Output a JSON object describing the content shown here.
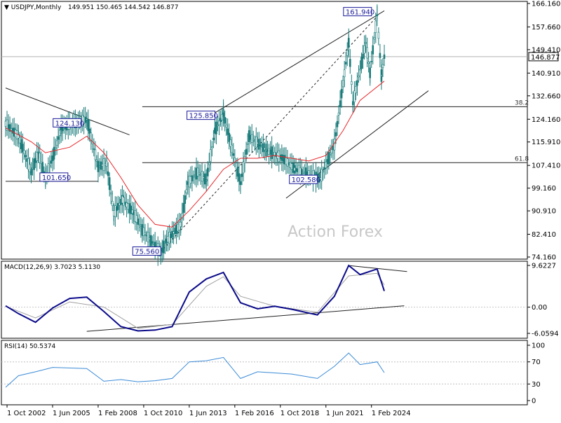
{
  "chart_data": [
    {
      "type": "candlestick",
      "title": "USDJPY,Monthly",
      "ohlc_label": "149.951 150.465 144.542 146.877",
      "ylim": [
        74.16,
        166.16
      ],
      "y_ticks": [
        "166.160",
        "157.660",
        "149.410",
        "140.910",
        "132.660",
        "124.160",
        "115.910",
        "107.410",
        "99.160",
        "90.910",
        "82.410",
        "74.160"
      ],
      "current_price": "146.877",
      "x_ticks": [
        "1 Oct 2002",
        "1 Jun 2005",
        "1 Feb 2008",
        "1 Oct 2010",
        "1 Jun 2013",
        "1 Feb 2016",
        "1 Oct 2018",
        "1 Jun 2021",
        "1 Feb 2024"
      ],
      "x_range": [
        "2002-09",
        "2024-11"
      ],
      "price_points": [
        {
          "date": "2002-09",
          "price": 122.5
        },
        {
          "date": "2003-06",
          "price": 118.0
        },
        {
          "date": "2004-03",
          "price": 105.0
        },
        {
          "date": "2004-08",
          "price": 112.0
        },
        {
          "date": "2005-01",
          "price": 103.0
        },
        {
          "date": "2005-06",
          "price": 110.0
        },
        {
          "date": "2005-12",
          "price": 121.0
        },
        {
          "date": "2007-06",
          "price": 124.1
        },
        {
          "date": "2008-02",
          "price": 107.0
        },
        {
          "date": "2008-08",
          "price": 108.0
        },
        {
          "date": "2009-01",
          "price": 90.0
        },
        {
          "date": "2009-07",
          "price": 95.0
        },
        {
          "date": "2010-03",
          "price": 90.0
        },
        {
          "date": "2010-09",
          "price": 84.0
        },
        {
          "date": "2011-10",
          "price": 75.6
        },
        {
          "date": "2012-02",
          "price": 80.0
        },
        {
          "date": "2012-12",
          "price": 86.0
        },
        {
          "date": "2013-05",
          "price": 101.0
        },
        {
          "date": "2013-12",
          "price": 105.0
        },
        {
          "date": "2014-06",
          "price": 102.0
        },
        {
          "date": "2014-12",
          "price": 120.0
        },
        {
          "date": "2015-06",
          "price": 125.85
        },
        {
          "date": "2016-06",
          "price": 101.0
        },
        {
          "date": "2016-12",
          "price": 118.0
        },
        {
          "date": "2017-12",
          "price": 113.0
        },
        {
          "date": "2018-12",
          "price": 110.0
        },
        {
          "date": "2019-08",
          "price": 106.0
        },
        {
          "date": "2020-12",
          "price": 103.0
        },
        {
          "date": "2021-02",
          "price": 102.6
        },
        {
          "date": "2021-12",
          "price": 115.0
        },
        {
          "date": "2022-10",
          "price": 151.9
        },
        {
          "date": "2023-01",
          "price": 130.0
        },
        {
          "date": "2023-10",
          "price": 151.9
        },
        {
          "date": "2024-01",
          "price": 141.0
        },
        {
          "date": "2024-06",
          "price": 161.9
        },
        {
          "date": "2024-09",
          "price": 140.0
        },
        {
          "date": "2024-11",
          "price": 146.877
        }
      ],
      "ma_points": [
        {
          "date": "2002-09",
          "price": 121
        },
        {
          "date": "2004-03",
          "price": 116
        },
        {
          "date": "2005-01",
          "price": 112
        },
        {
          "date": "2006-06",
          "price": 114
        },
        {
          "date": "2007-06",
          "price": 118
        },
        {
          "date": "2008-06",
          "price": 112
        },
        {
          "date": "2009-06",
          "price": 103
        },
        {
          "date": "2010-06",
          "price": 93
        },
        {
          "date": "2011-06",
          "price": 86
        },
        {
          "date": "2012-06",
          "price": 85
        },
        {
          "date": "2013-06",
          "price": 91
        },
        {
          "date": "2014-06",
          "price": 98
        },
        {
          "date": "2015-06",
          "price": 106
        },
        {
          "date": "2016-06",
          "price": 110
        },
        {
          "date": "2017-06",
          "price": 110
        },
        {
          "date": "2018-06",
          "price": 111
        },
        {
          "date": "2019-06",
          "price": 110
        },
        {
          "date": "2020-06",
          "price": 109
        },
        {
          "date": "2021-06",
          "price": 111
        },
        {
          "date": "2022-06",
          "price": 120
        },
        {
          "date": "2023-06",
          "price": 131
        },
        {
          "date": "2024-11",
          "price": 138
        }
      ],
      "annotations": [
        {
          "text": "161.940",
          "date": "2024-06",
          "price": 161.94
        },
        {
          "text": "124.130",
          "date": "2007-06",
          "price": 124.13
        },
        {
          "text": "125.850",
          "date": "2015-06",
          "price": 125.85
        },
        {
          "text": "101.650",
          "date": "2005-01",
          "price": 101.65
        },
        {
          "text": "102.580",
          "date": "2021-02",
          "price": 102.58
        },
        {
          "text": "75.560",
          "date": "2011-10",
          "price": 75.56
        }
      ],
      "fib_levels": [
        {
          "label": "38.2",
          "price": 128.7
        },
        {
          "label": "61.8",
          "price": 108.4
        }
      ],
      "watermark": "Action Forex"
    },
    {
      "type": "line",
      "title": "MACD(12,26,9) 3.7023 5.1130",
      "y_ticks": [
        "9.6227",
        "0.00",
        "-6.0594"
      ],
      "ylim": [
        -6.0594,
        9.6227
      ],
      "macd_points": [
        {
          "date": "2002-09",
          "v": 0.3
        },
        {
          "date": "2003-06",
          "v": -1.5
        },
        {
          "date": "2004-06",
          "v": -3.5
        },
        {
          "date": "2005-06",
          "v": -0.2
        },
        {
          "date": "2006-06",
          "v": 2.0
        },
        {
          "date": "2007-06",
          "v": 2.3
        },
        {
          "date": "2008-06",
          "v": -1.0
        },
        {
          "date": "2009-06",
          "v": -4.5
        },
        {
          "date": "2010-06",
          "v": -5.5
        },
        {
          "date": "2011-06",
          "v": -5.3
        },
        {
          "date": "2012-06",
          "v": -4.5
        },
        {
          "date": "2013-06",
          "v": 3.5
        },
        {
          "date": "2014-06",
          "v": 6.5
        },
        {
          "date": "2015-06",
          "v": 8.0
        },
        {
          "date": "2016-06",
          "v": 1.0
        },
        {
          "date": "2017-06",
          "v": -0.4
        },
        {
          "date": "2018-06",
          "v": 0.2
        },
        {
          "date": "2019-06",
          "v": -0.5
        },
        {
          "date": "2020-12",
          "v": -1.8
        },
        {
          "date": "2021-12",
          "v": 2.5
        },
        {
          "date": "2022-10",
          "v": 9.6
        },
        {
          "date": "2023-06",
          "v": 7.5
        },
        {
          "date": "2024-06",
          "v": 8.8
        },
        {
          "date": "2024-11",
          "v": 3.7
        }
      ],
      "signal_points": [
        {
          "date": "2002-09",
          "v": 0.2
        },
        {
          "date": "2004-06",
          "v": -2.5
        },
        {
          "date": "2006-06",
          "v": 1.2
        },
        {
          "date": "2008-06",
          "v": 0.0
        },
        {
          "date": "2010-06",
          "v": -4.9
        },
        {
          "date": "2012-06",
          "v": -4.0
        },
        {
          "date": "2014-06",
          "v": 4.8
        },
        {
          "date": "2015-06",
          "v": 7.0
        },
        {
          "date": "2016-06",
          "v": 2.5
        },
        {
          "date": "2018-06",
          "v": 0.2
        },
        {
          "date": "2020-12",
          "v": -1.2
        },
        {
          "date": "2022-10",
          "v": 7.2
        },
        {
          "date": "2024-06",
          "v": 7.8
        },
        {
          "date": "2024-11",
          "v": 5.1
        }
      ]
    },
    {
      "type": "line",
      "title": "RSI(14) 50.5374",
      "y_ticks": [
        "100",
        "70",
        "30",
        "0"
      ],
      "ylim": [
        0,
        100
      ],
      "rsi_points": [
        {
          "date": "2002-09",
          "v": 24
        },
        {
          "date": "2003-06",
          "v": 45
        },
        {
          "date": "2004-06",
          "v": 52
        },
        {
          "date": "2005-06",
          "v": 60
        },
        {
          "date": "2007-06",
          "v": 58
        },
        {
          "date": "2008-06",
          "v": 35
        },
        {
          "date": "2009-06",
          "v": 38
        },
        {
          "date": "2010-06",
          "v": 34
        },
        {
          "date": "2011-06",
          "v": 36
        },
        {
          "date": "2012-06",
          "v": 40
        },
        {
          "date": "2013-06",
          "v": 70
        },
        {
          "date": "2014-06",
          "v": 72
        },
        {
          "date": "2015-06",
          "v": 78
        },
        {
          "date": "2016-06",
          "v": 40
        },
        {
          "date": "2017-06",
          "v": 52
        },
        {
          "date": "2018-06",
          "v": 50
        },
        {
          "date": "2019-06",
          "v": 48
        },
        {
          "date": "2020-12",
          "v": 40
        },
        {
          "date": "2021-12",
          "v": 62
        },
        {
          "date": "2022-10",
          "v": 86
        },
        {
          "date": "2023-06",
          "v": 65
        },
        {
          "date": "2024-06",
          "v": 70
        },
        {
          "date": "2024-11",
          "v": 50.5
        }
      ]
    }
  ],
  "colors": {
    "price": "#1a7a7a",
    "ma": "#e8262a",
    "macd": "#0a0a8a",
    "signal": "#a0a0a0",
    "rsi": "#3a8ad6",
    "trend": "#222222",
    "label_border": "#1a1a9a",
    "label_text": "#1a1a9a",
    "watermark": "#c8c8c8"
  }
}
